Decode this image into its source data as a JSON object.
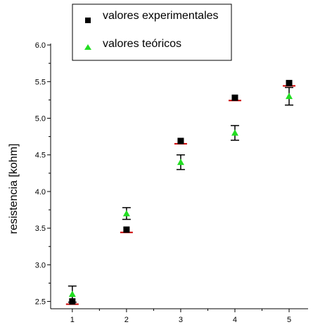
{
  "chart_data": {
    "type": "scatter",
    "title": "",
    "xlabel": "",
    "ylabel": "resistencia [kohm]",
    "xlim": [
      0.6,
      5.35
    ],
    "ylim": [
      2.4,
      6.02
    ],
    "x_ticks": [
      1,
      2,
      3,
      4,
      5
    ],
    "x_tick_labels": [
      "1",
      "2",
      "3",
      "4",
      "5"
    ],
    "y_ticks": [
      2.5,
      3.0,
      3.5,
      4.0,
      4.5,
      5.0,
      5.5,
      6.0
    ],
    "y_tick_labels": [
      "2.5",
      "3.0",
      "3.5",
      "4.0",
      "4.5",
      "5.0",
      "5.5",
      "6.0"
    ],
    "grid": false,
    "legend_position": "top-right",
    "series": [
      {
        "name": "valores experimentales",
        "marker": "square",
        "color": "#000000",
        "line_color": "#cc0000",
        "x": [
          1,
          2,
          3,
          4,
          5
        ],
        "y": [
          2.5,
          3.48,
          4.69,
          5.28,
          5.48
        ]
      },
      {
        "name": "valores teóricos",
        "marker": "triangle",
        "color": "#22dd22",
        "errorbar_color": "#000000",
        "x": [
          1,
          2,
          3,
          4,
          5
        ],
        "y": [
          2.6,
          3.7,
          4.4,
          4.8,
          5.3
        ],
        "yerr": [
          0.11,
          0.08,
          0.1,
          0.1,
          0.12
        ]
      }
    ]
  }
}
